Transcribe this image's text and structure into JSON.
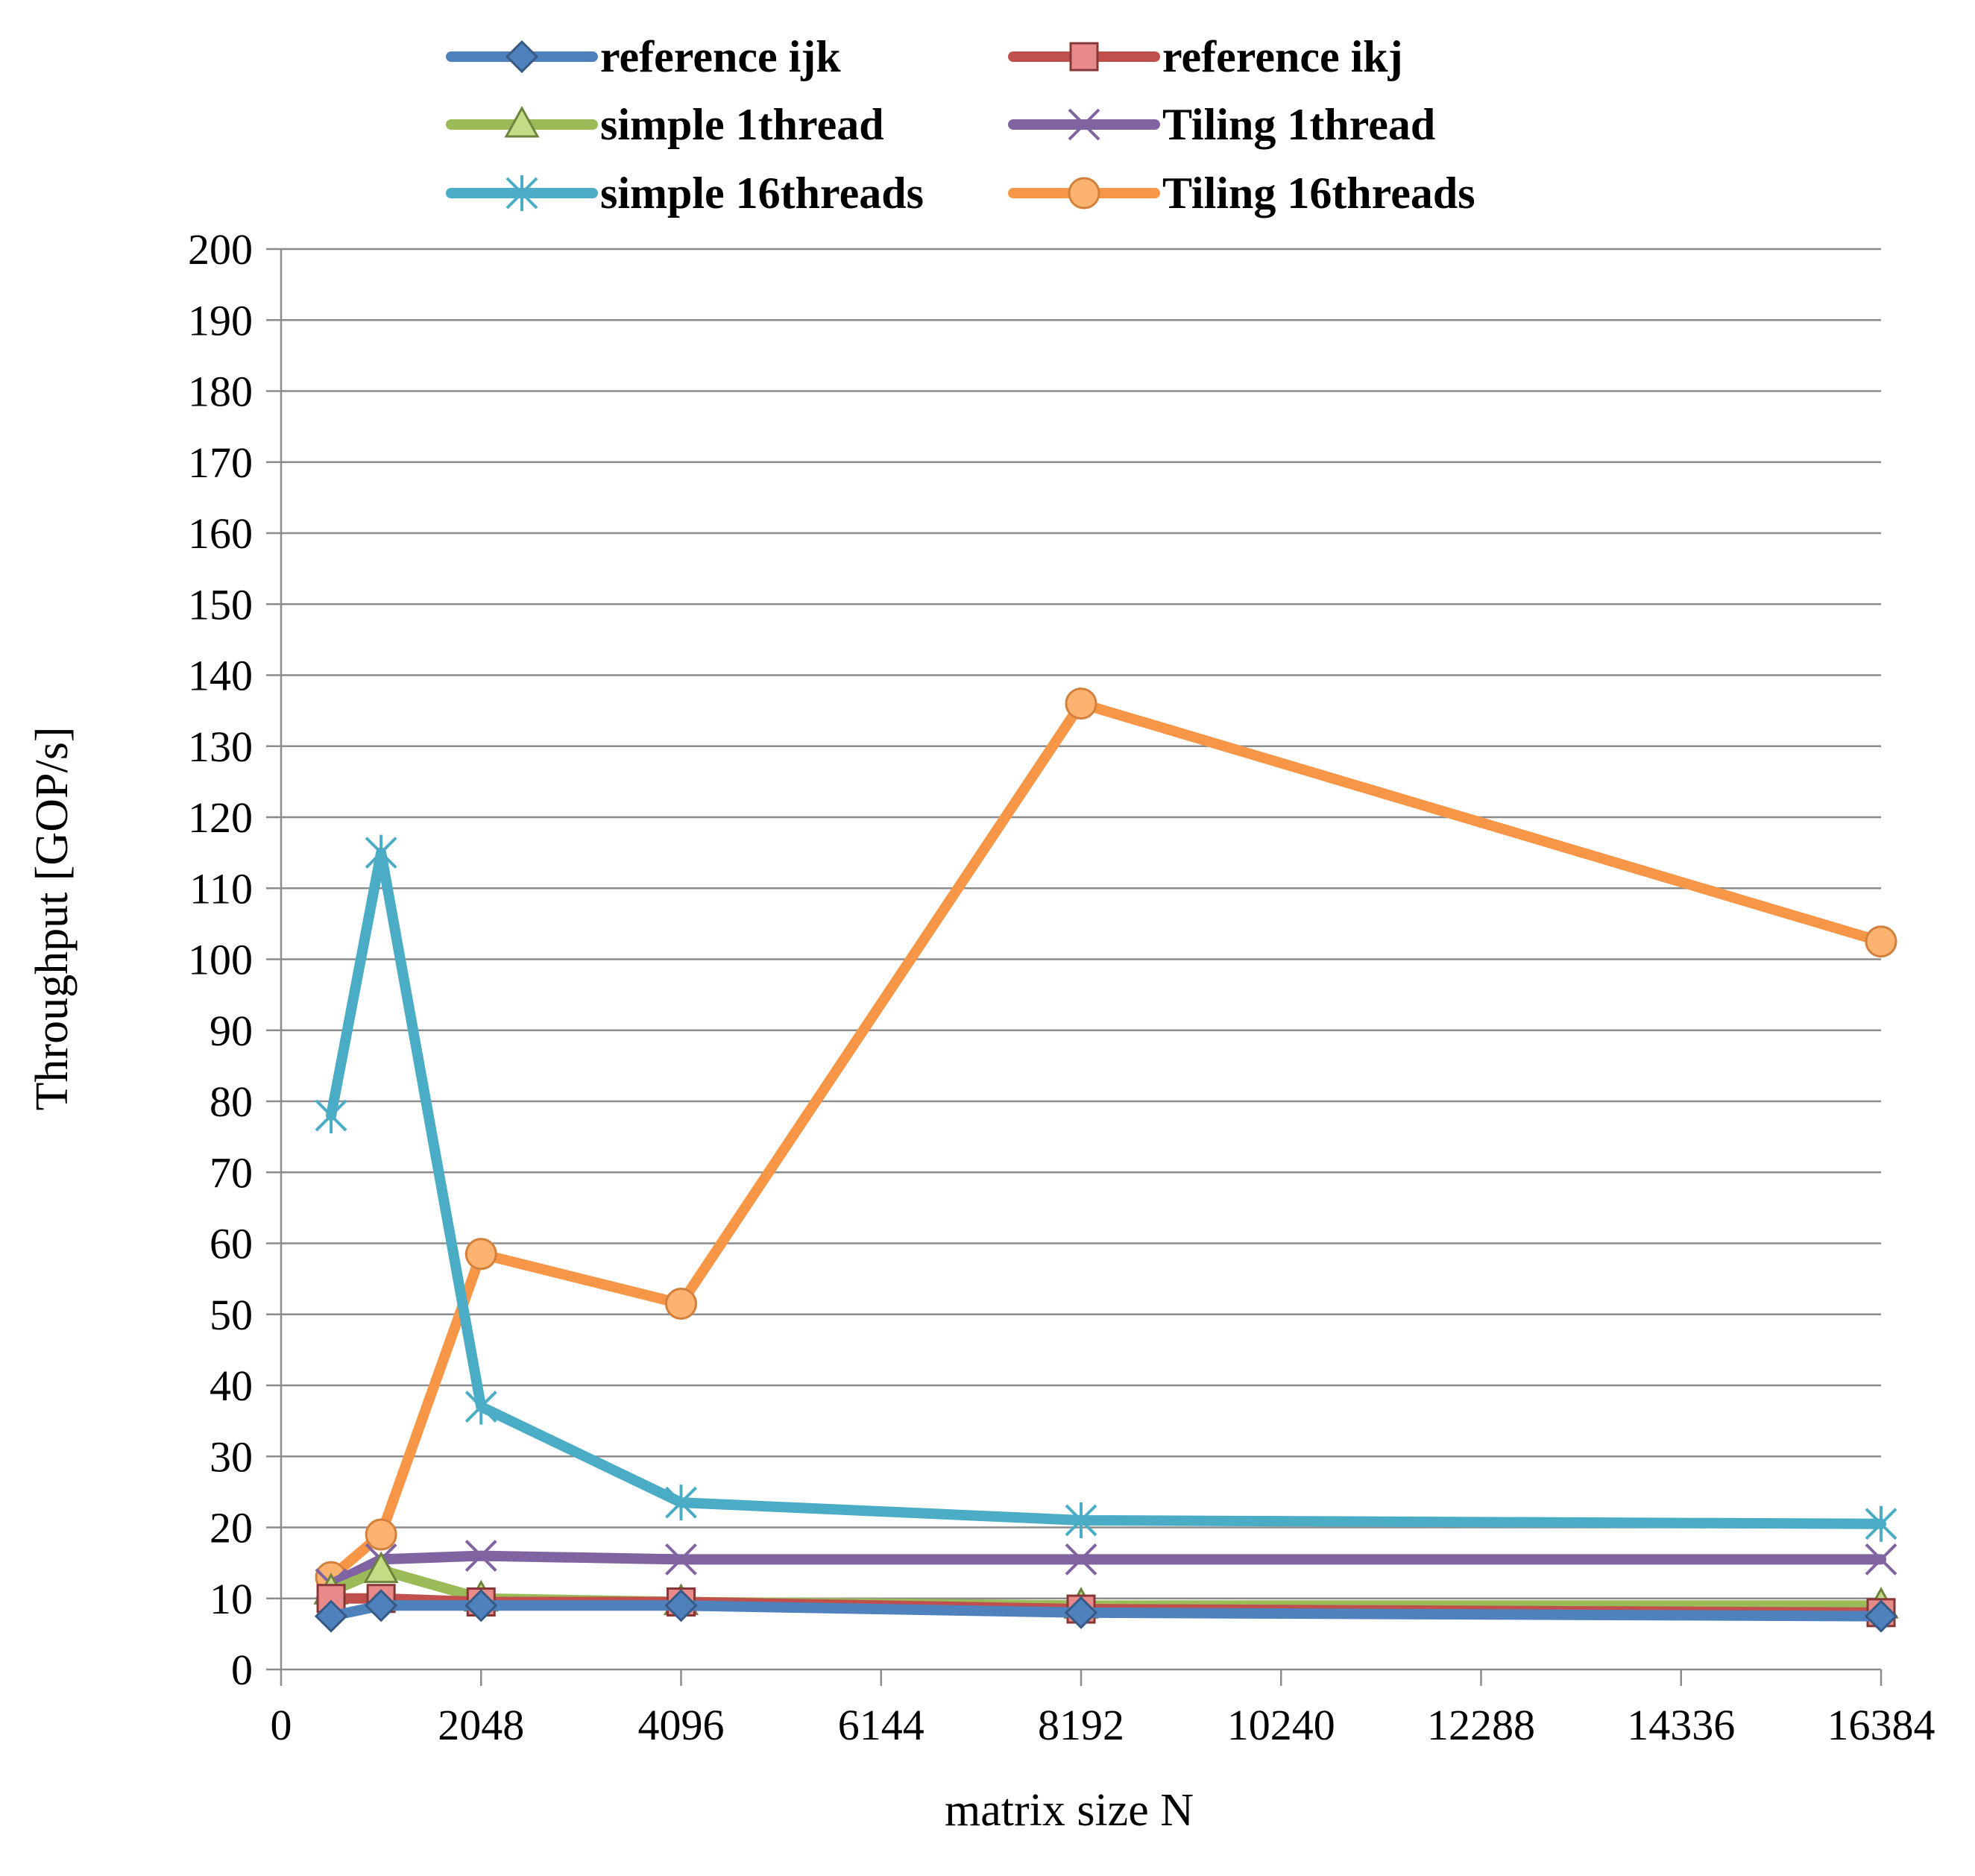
{
  "chart_data": {
    "type": "line",
    "title": "",
    "xlabel": "matrix size N",
    "ylabel": "Throughput [GOP/s]",
    "xlim": [
      0,
      16384
    ],
    "ylim": [
      0,
      200
    ],
    "xticks": [
      0,
      2048,
      4096,
      6144,
      8192,
      10240,
      12288,
      14336,
      16384
    ],
    "yticks": [
      0,
      10,
      20,
      30,
      40,
      50,
      60,
      70,
      80,
      90,
      100,
      110,
      120,
      130,
      140,
      150,
      160,
      170,
      180,
      190,
      200
    ],
    "grid": "horizontal",
    "legend_position": "top",
    "x": [
      512,
      1024,
      2048,
      4096,
      8192,
      16384
    ],
    "series": [
      {
        "name": "reference ijk",
        "color": "#4F81BD",
        "marker": "diamond",
        "values": [
          7.5,
          9,
          9,
          9,
          8,
          7.5
        ]
      },
      {
        "name": "reference ikj",
        "color": "#C0504D",
        "marker": "square",
        "values": [
          10,
          10,
          9.5,
          9.5,
          8.5,
          8
        ]
      },
      {
        "name": "simple 1thread",
        "color": "#9BBB59",
        "marker": "triangle",
        "values": [
          11,
          14,
          10,
          9.5,
          9,
          9
        ]
      },
      {
        "name": "Tiling 1thread",
        "color": "#8064A2",
        "marker": "x",
        "values": [
          12,
          15.5,
          16,
          15.5,
          15.5,
          15.5
        ]
      },
      {
        "name": "simple 16threads",
        "color": "#4BACC6",
        "marker": "star",
        "values": [
          78,
          115,
          37,
          23.5,
          21,
          20.5
        ]
      },
      {
        "name": "Tiling 16threads",
        "color": "#F79646",
        "marker": "circle",
        "values": [
          13,
          19,
          58.5,
          51.5,
          136,
          102.5
        ]
      }
    ]
  }
}
